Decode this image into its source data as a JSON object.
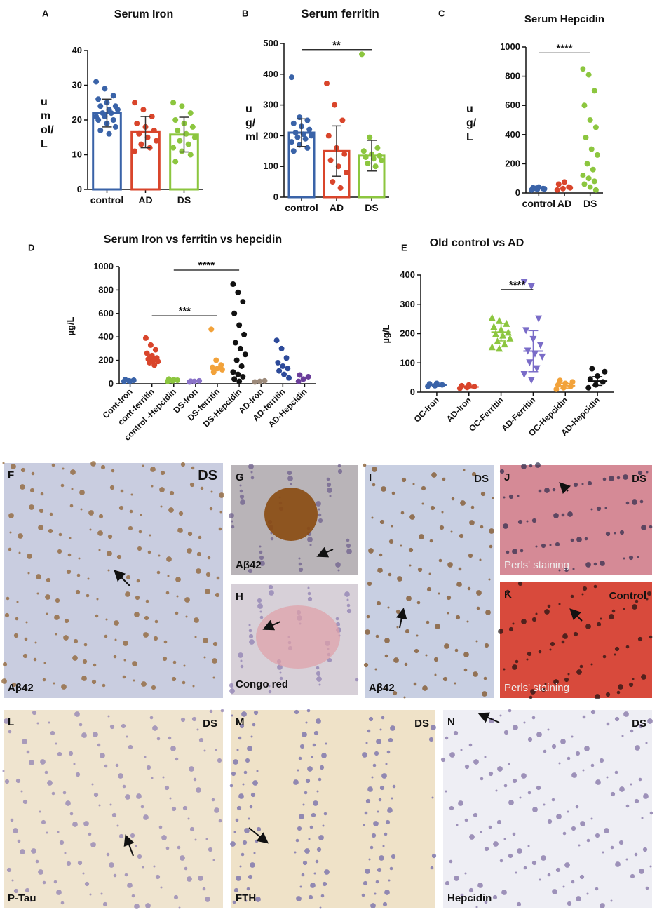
{
  "chart_data": [
    {
      "type": "bar",
      "panel": "A",
      "title": "Serum Iron",
      "ylabel_lines": [
        "u",
        "m",
        "ol/",
        "L"
      ],
      "categories": [
        "control",
        "AD",
        "DS"
      ],
      "colors": [
        "#3a63a8",
        "#d9452b",
        "#8cc63f"
      ],
      "values": [
        22,
        16.5,
        15.8
      ],
      "errors": [
        4,
        4.5,
        5
      ],
      "points": [
        [
          31,
          29,
          27,
          26,
          25,
          24,
          24,
          23,
          23,
          22,
          22,
          21,
          21,
          20,
          20,
          19,
          18,
          17,
          16
        ],
        [
          25,
          23,
          21,
          19,
          18,
          17,
          16,
          15,
          14,
          13,
          12,
          11
        ],
        [
          25,
          24,
          22,
          20,
          19,
          18,
          17,
          16,
          15,
          14,
          13,
          12,
          11,
          10,
          8
        ]
      ],
      "ylim": [
        0,
        40
      ],
      "yticks": [
        0,
        10,
        20,
        30,
        40
      ]
    },
    {
      "type": "bar",
      "panel": "B",
      "title": "Serum ferritin",
      "ylabel_lines": [
        "u",
        "g/",
        "ml"
      ],
      "categories": [
        "control",
        "AD",
        "DS"
      ],
      "colors": [
        "#3a63a8",
        "#d9452b",
        "#8cc63f"
      ],
      "values": [
        210,
        150,
        135
      ],
      "errors": [
        45,
        82,
        50
      ],
      "points": [
        [
          390,
          260,
          250,
          240,
          230,
          220,
          210,
          205,
          200,
          195,
          190,
          180,
          170,
          160,
          150
        ],
        [
          370,
          300,
          250,
          200,
          160,
          140,
          120,
          100,
          80,
          50,
          30
        ],
        [
          465,
          195,
          160,
          150,
          140,
          135,
          130,
          125,
          120,
          110,
          100
        ]
      ],
      "significance": [
        {
          "text": "**",
          "from": "control",
          "to": "DS",
          "y": 480
        }
      ],
      "ylim": [
        0,
        500
      ],
      "yticks": [
        0,
        100,
        200,
        300,
        400,
        500
      ]
    },
    {
      "type": "dot",
      "panel": "C",
      "title": "Serum Hepcidin",
      "ylabel_lines": [
        "u",
        "g/",
        "L"
      ],
      "categories": [
        "control",
        "AD",
        "DS"
      ],
      "colors": [
        "#3a63a8",
        "#d9452b",
        "#8cc63f"
      ],
      "points": [
        [
          20,
          25,
          30,
          35,
          40,
          28,
          32
        ],
        [
          20,
          30,
          40,
          60,
          75,
          35
        ],
        [
          850,
          810,
          700,
          600,
          500,
          450,
          380,
          300,
          260,
          200,
          160,
          120,
          100,
          80,
          60,
          40,
          20
        ]
      ],
      "significance": [
        {
          "text": "****",
          "from": "control",
          "to": "DS",
          "y": 960
        }
      ],
      "ylim": [
        0,
        1000
      ],
      "yticks": [
        0,
        200,
        400,
        600,
        800,
        1000
      ]
    },
    {
      "type": "dot",
      "panel": "D",
      "title": "Serum Iron vs ferritin vs hepcidin",
      "ylabel": "µg/L",
      "categories": [
        "Cont-Iron",
        "cont-ferritin",
        "control -Hepcidin",
        "DS-Iron",
        "DS-ferritin",
        "DS-Hepcidin",
        "AD-Iron",
        "AD-ferritin",
        "AD-Hepcidin"
      ],
      "colors": [
        "#3a63a8",
        "#d9452b",
        "#8cc63f",
        "#8a73c8",
        "#f2a23a",
        "#111111",
        "#9c8a7a",
        "#2d4a9a",
        "#6a3d9a"
      ],
      "points": [
        [
          20,
          25,
          30,
          35,
          22
        ],
        [
          390,
          330,
          290,
          260,
          240,
          220,
          210,
          200,
          190,
          180,
          160
        ],
        [
          20,
          25,
          30,
          40,
          35
        ],
        [
          15,
          20,
          25,
          22
        ],
        [
          465,
          200,
          160,
          140,
          130,
          120,
          100
        ],
        [
          850,
          780,
          700,
          600,
          500,
          420,
          350,
          300,
          250,
          200,
          150,
          100,
          80,
          60,
          40,
          20
        ],
        [
          15,
          20,
          25
        ],
        [
          370,
          300,
          220,
          180,
          150,
          130,
          110,
          80,
          50
        ],
        [
          20,
          40,
          60,
          75
        ]
      ],
      "significance": [
        {
          "text": "***",
          "from": "cont-ferritin",
          "to": "DS-ferritin",
          "y": 580
        },
        {
          "text": "****",
          "from": "control -Hepcidin",
          "to": "DS-Hepcidin",
          "y": 970
        }
      ],
      "ylim": [
        0,
        1000
      ],
      "yticks": [
        0,
        200,
        400,
        600,
        800,
        1000
      ]
    },
    {
      "type": "dot",
      "panel": "E",
      "title": "Old control vs AD",
      "ylabel": "µg/L",
      "categories": [
        "OC-Iron",
        "AD-Iron",
        "OC-Ferritin",
        "AD-Ferritin",
        "OC-Hepcidin",
        "AD-Hepcidin"
      ],
      "colors": [
        "#3a63a8",
        "#d9452b",
        "#8cc63f",
        "#7a6cc8",
        "#f2a23a",
        "#111111"
      ],
      "markers": [
        "circle",
        "circle",
        "triangle",
        "triangle",
        "circle",
        "circle"
      ],
      "points": [
        [
          20,
          22,
          25,
          28,
          30
        ],
        [
          13,
          16,
          19,
          22,
          25
        ],
        [
          255,
          245,
          235,
          225,
          215,
          205,
          200,
          195,
          185,
          175,
          165,
          155,
          150
        ],
        [
          375,
          360,
          250,
          210,
          180,
          160,
          140,
          130,
          120,
          100,
          80,
          60,
          40
        ],
        [
          10,
          15,
          20,
          25,
          30,
          35,
          40
        ],
        [
          15,
          25,
          35,
          45,
          55,
          70,
          80
        ]
      ],
      "means": [
        24,
        18,
        205,
        140,
        22,
        38
      ],
      "errors": [
        3,
        3,
        30,
        70,
        8,
        15
      ],
      "significance": [
        {
          "text": "****",
          "from": "OC-Ferritin",
          "to": "AD-Ferritin",
          "y": 350
        }
      ],
      "ylim": [
        0,
        400
      ],
      "yticks": [
        0,
        100,
        200,
        300,
        400
      ]
    }
  ],
  "image_panels": [
    {
      "letter": "F",
      "tags": [
        "DS",
        "Aβ42"
      ]
    },
    {
      "letter": "G",
      "tags": [
        "Aβ42"
      ]
    },
    {
      "letter": "H",
      "tags": [
        "Congo red"
      ]
    },
    {
      "letter": "I",
      "tags": [
        "DS",
        "Aβ42"
      ]
    },
    {
      "letter": "J",
      "tags": [
        "DS",
        "Perls' staining"
      ]
    },
    {
      "letter": "K",
      "tags": [
        "Control",
        "Perls' staining"
      ]
    },
    {
      "letter": "L",
      "tags": [
        "DS",
        "P-Tau"
      ]
    },
    {
      "letter": "M",
      "tags": [
        "DS",
        "FTH"
      ]
    },
    {
      "letter": "N",
      "tags": [
        "DS",
        "Hepcidin"
      ]
    }
  ]
}
